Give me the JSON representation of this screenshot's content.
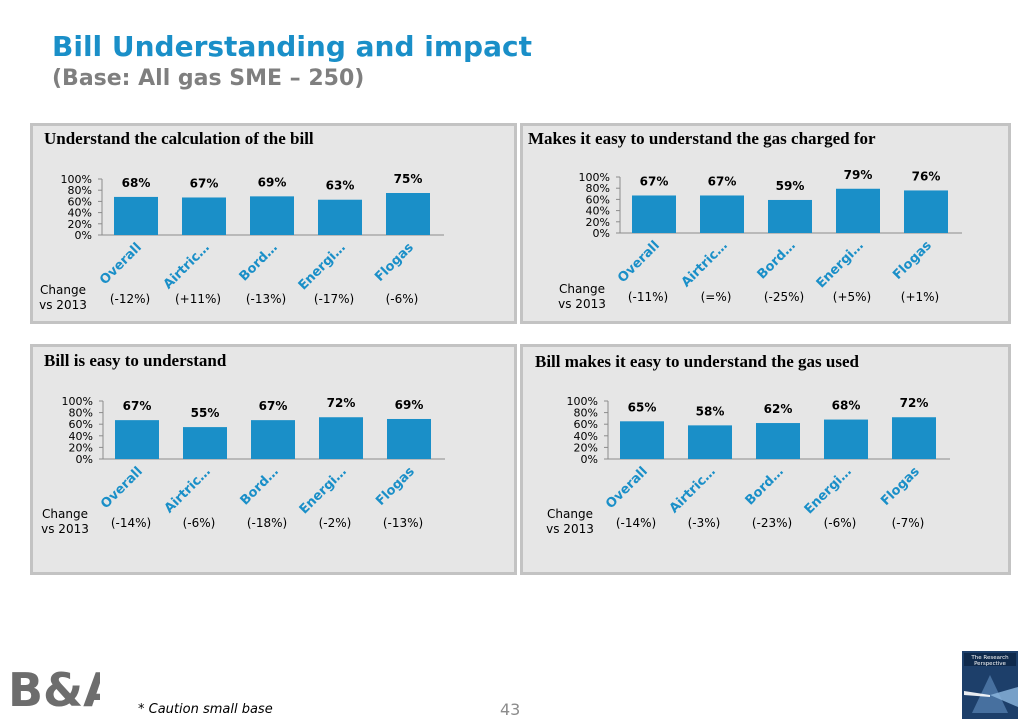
{
  "header": {
    "title": "Bill Understanding and impact",
    "subtitle": "(Base: All gas SME – 250)"
  },
  "footer": {
    "caution": "* Caution small base",
    "page_number": "43",
    "logo_text": "B&A",
    "logo2_line1": "The Research",
    "logo2_line2": "Perspective"
  },
  "colors": {
    "bar": "#1a8fc8",
    "title": "#1a8fc8",
    "subtitle": "#7f7f7f",
    "category_label": "#1a8fc8",
    "panel_bg": "#e6e6e6"
  },
  "change_label": [
    "Change",
    "vs 2013"
  ],
  "chart_data": [
    {
      "type": "bar",
      "title": "Understand the calculation of the bill",
      "categories": [
        "Overall",
        "Airtric…",
        "Bord…",
        "Energi…",
        "Flogas"
      ],
      "values": [
        68,
        67,
        69,
        63,
        75
      ],
      "value_labels": [
        "68%",
        "67%",
        "69%",
        "63%",
        "75%"
      ],
      "change_vs_2013": [
        "(-12%)",
        "(+11%)",
        "(-13%)",
        "(-17%)",
        "(-6%)"
      ],
      "y_ticks": [
        "100%",
        "80%",
        "60%",
        "40%",
        "20%",
        "0%"
      ],
      "ylim": [
        0,
        100
      ]
    },
    {
      "type": "bar",
      "title": "Makes it easy to understand the gas charged for",
      "categories": [
        "Overall",
        "Airtric…",
        "Bord…",
        "Energi…",
        "Flogas"
      ],
      "values": [
        67,
        67,
        59,
        79,
        76
      ],
      "value_labels": [
        "67%",
        "67%",
        "59%",
        "79%",
        "76%"
      ],
      "change_vs_2013": [
        "(-11%)",
        "(=%)",
        "(-25%)",
        "(+5%)",
        "(+1%)"
      ],
      "y_ticks": [
        "100%",
        "80%",
        "60%",
        "40%",
        "20%",
        "0%"
      ],
      "ylim": [
        0,
        100
      ]
    },
    {
      "type": "bar",
      "title": "Bill is easy to understand",
      "categories": [
        "Overall",
        "Airtric…",
        "Bord…",
        "Energi…",
        "Flogas"
      ],
      "values": [
        67,
        55,
        67,
        72,
        69
      ],
      "value_labels": [
        "67%",
        "55%",
        "67%",
        "72%",
        "69%"
      ],
      "change_vs_2013": [
        "(-14%)",
        "(-6%)",
        "(-18%)",
        "(-2%)",
        "(-13%)"
      ],
      "y_ticks": [
        "100%",
        "80%",
        "60%",
        "40%",
        "20%",
        "0%"
      ],
      "ylim": [
        0,
        100
      ]
    },
    {
      "type": "bar",
      "title": "Bill makes it easy to understand the gas used",
      "categories": [
        "Overall",
        "Airtric…",
        "Bord…",
        "Energi…",
        "Flogas"
      ],
      "values": [
        65,
        58,
        62,
        68,
        72
      ],
      "value_labels": [
        "65%",
        "58%",
        "62%",
        "68%",
        "72%"
      ],
      "change_vs_2013": [
        "(-14%)",
        "(-3%)",
        "(-23%)",
        "(-6%)",
        "(-7%)"
      ],
      "y_ticks": [
        "100%",
        "80%",
        "60%",
        "40%",
        "20%",
        "0%"
      ],
      "ylim": [
        0,
        100
      ]
    }
  ]
}
